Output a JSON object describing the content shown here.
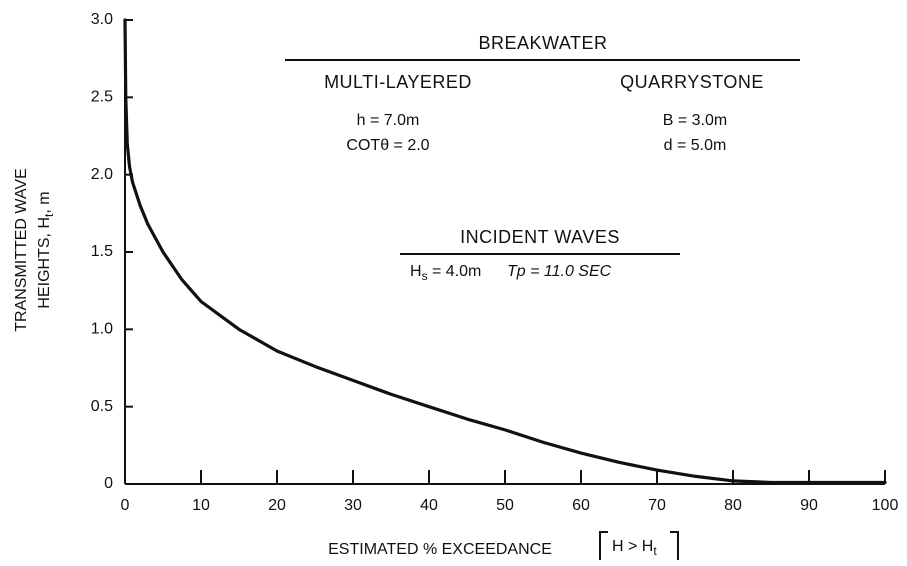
{
  "chart_data": {
    "type": "line",
    "color": "#111111",
    "x_label": "ESTIMATED % EXCEEDANCE",
    "x_label_condition": "H > H",
    "x_label_condition_sub": "t",
    "y_label_line1": "TRANSMITTED WAVE",
    "y_label_line2": "HEIGHTS, H",
    "y_label_sub": "t",
    "y_label_unit": ", m",
    "annotations": {
      "breakwater": "BREAKWATER",
      "multi_layered": "MULTI-LAYERED",
      "quarrystone": "QUARRYSTONE",
      "h": "h = 7.0m",
      "cot": "COTθ = 2.0",
      "b": "B = 3.0m",
      "d": "d = 5.0m",
      "incident": "INCIDENT WAVES",
      "hs_symbol": "H",
      "hs_sub": "s",
      "hs_value": " = 4.0m",
      "tp": "Tp = 11.0 SEC"
    },
    "x": [
      0,
      0.1,
      0.3,
      0.6,
      1,
      2,
      3,
      5,
      7.5,
      10,
      15,
      20,
      25,
      30,
      35,
      40,
      45,
      50,
      55,
      60,
      65,
      70,
      75,
      80,
      85,
      90,
      95,
      100
    ],
    "values": [
      3.0,
      2.5,
      2.2,
      2.05,
      1.95,
      1.8,
      1.68,
      1.5,
      1.32,
      1.18,
      1.0,
      0.86,
      0.76,
      0.67,
      0.58,
      0.5,
      0.42,
      0.35,
      0.27,
      0.2,
      0.14,
      0.09,
      0.05,
      0.02,
      0.01,
      0.01,
      0.01,
      0.01
    ],
    "xlim": [
      0,
      100
    ],
    "ylim": [
      0,
      3
    ],
    "xticks": [
      0,
      10,
      20,
      30,
      40,
      50,
      60,
      70,
      80,
      90,
      100
    ],
    "yticks": [
      0,
      {
        "value": 0.5,
        "label": "0.5"
      },
      {
        "value": 1,
        "label": "1.0"
      },
      {
        "value": 1.5,
        "label": "1.5"
      },
      {
        "value": 2,
        "label": "2.0"
      },
      {
        "value": 2.5,
        "label": "2.5"
      },
      {
        "value": 3,
        "label": "3.0"
      }
    ]
  }
}
